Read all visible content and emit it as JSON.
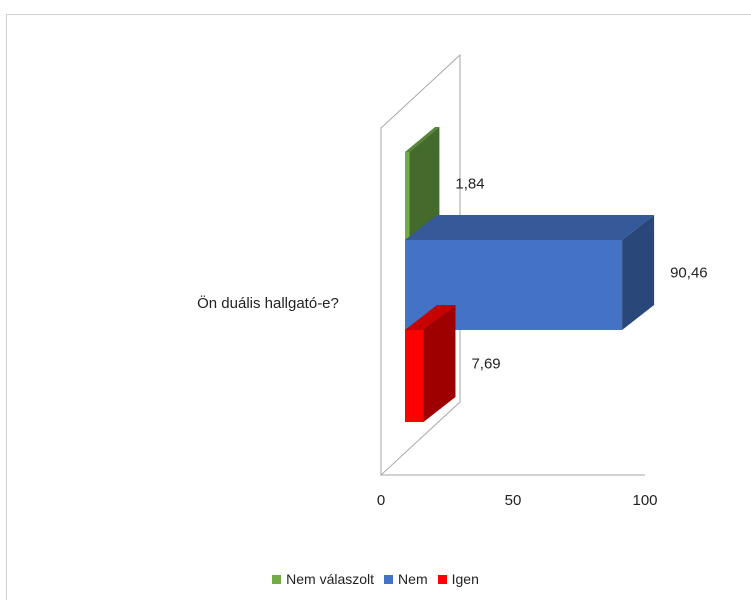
{
  "chart_data": {
    "type": "bar",
    "orientation": "horizontal",
    "style": "3d-clustered",
    "categories": [
      "Ön duális hallgató-e?"
    ],
    "series": [
      {
        "name": "Nem válaszolt",
        "values": [
          1.84
        ],
        "data_label": "1,84",
        "color": "#70AD47"
      },
      {
        "name": "Nem",
        "values": [
          90.46
        ],
        "data_label": "90,46",
        "color": "#4472C4"
      },
      {
        "name": "Igen",
        "values": [
          7.69
        ],
        "data_label": "7,69",
        "color": "#FF0000"
      }
    ],
    "xlim": [
      0,
      100
    ],
    "x_ticks": [
      "0",
      "50",
      "100"
    ],
    "grid": false,
    "legend_position": "bottom"
  }
}
